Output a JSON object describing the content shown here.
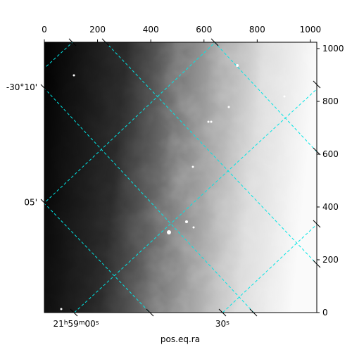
{
  "chart_data": {
    "type": "image",
    "xlabel": "pos.eq.ra",
    "xlim": [
      0,
      1024
    ],
    "ylim": [
      0,
      1024
    ],
    "xticks": [
      0,
      200,
      400,
      600,
      800,
      1000
    ],
    "yticks": [
      0,
      200,
      400,
      600,
      800,
      1000
    ],
    "ra_ticks": [
      {
        "value": 119,
        "label": [
          "21",
          "h",
          "59",
          "m",
          "00",
          "s"
        ]
      },
      {
        "value": 669,
        "label": [
          "30",
          "s"
        ]
      }
    ],
    "dec_ticks": [
      {
        "value": 853,
        "label": "-30°10'"
      },
      {
        "value": 417,
        "label": "05'"
      }
    ],
    "grid_color": "#00e5e5",
    "cmap": "gray"
  }
}
